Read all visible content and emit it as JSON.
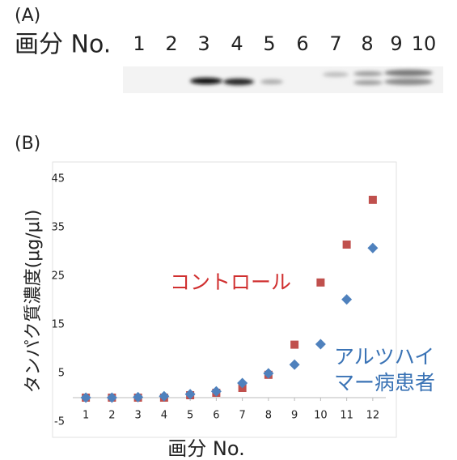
{
  "panel_a": {
    "label": "(A)",
    "axis_label": "画分 No.",
    "lanes": [
      "1",
      "2",
      "3",
      "4",
      "5",
      "6",
      "7",
      "8",
      "9",
      "10"
    ]
  },
  "chart_data": {
    "type": "scatter",
    "panel_label": "(B)",
    "x_label": "画分 No.",
    "y_label": "タンパク質濃度(μg/μl)",
    "x": [
      1,
      2,
      3,
      4,
      5,
      6,
      7,
      8,
      9,
      10,
      11,
      12
    ],
    "xlim": [
      0.5,
      12.5
    ],
    "xticks": [
      1,
      2,
      3,
      4,
      5,
      6,
      7,
      8,
      9,
      10,
      11,
      12
    ],
    "ylim": [
      -5,
      45
    ],
    "yticks": [
      -5,
      5,
      15,
      25,
      35,
      45
    ],
    "series": [
      {
        "name": "コントロール",
        "color": "#c0504d",
        "marker": "square",
        "values": [
          0,
          0,
          0,
          0,
          0.5,
          1,
          2,
          4.7,
          10.9,
          23.7,
          31.5,
          40.7
        ]
      },
      {
        "name": "アルツハイマー病患者",
        "color": "#4f81bd",
        "marker": "diamond",
        "values": [
          0,
          0,
          0.1,
          0.3,
          0.7,
          1.3,
          3,
          5,
          6.8,
          11,
          20.2,
          30.8
        ]
      }
    ]
  }
}
